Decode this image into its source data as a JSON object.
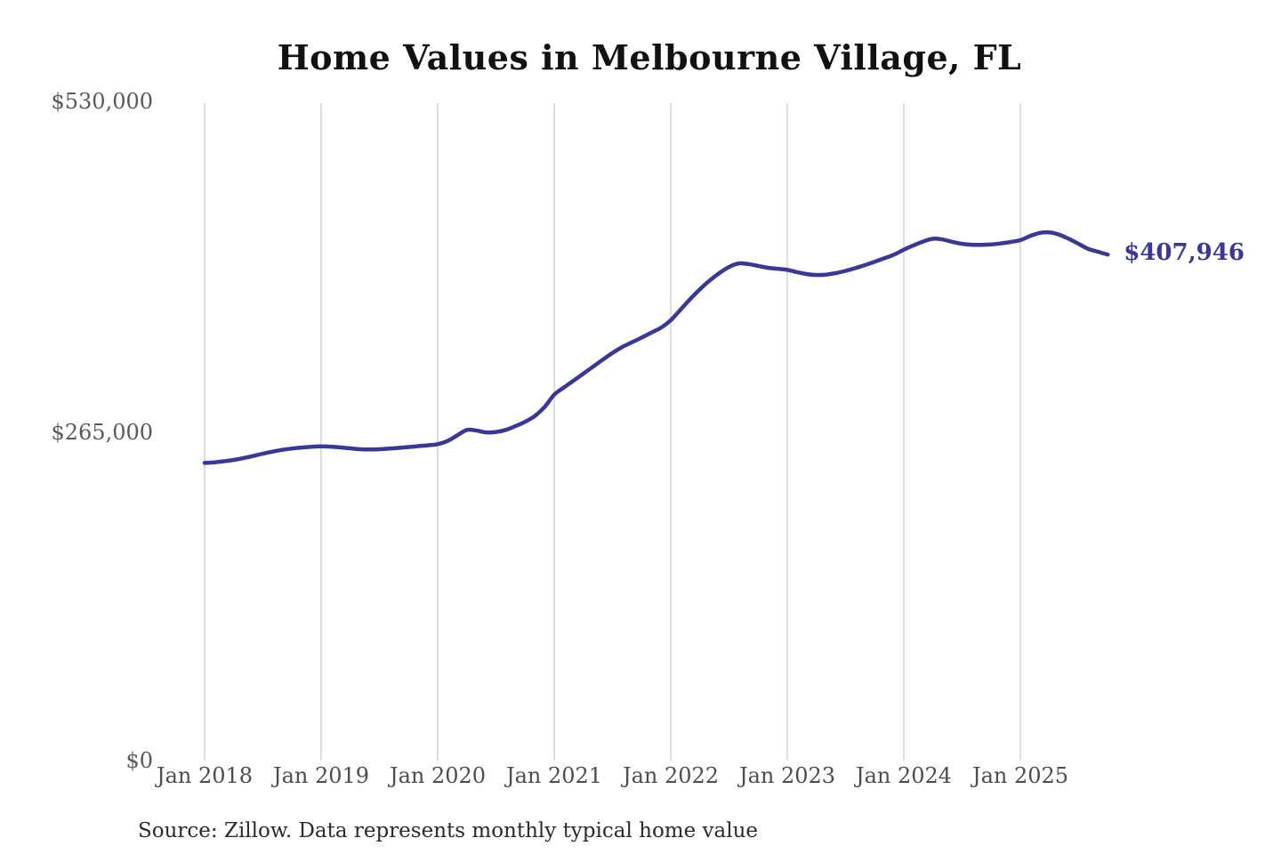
{
  "title": "Home Values in Melbourne Village, FL",
  "end_label": "$407,946",
  "source_note": "Source: Zillow. Data represents monthly typical home value",
  "y_axis": {
    "ticks": [
      "$530,000",
      "$265,000",
      "$0"
    ]
  },
  "x_axis": {
    "ticks": [
      "Jan 2018",
      "Jan 2019",
      "Jan 2020",
      "Jan 2021",
      "Jan 2022",
      "Jan 2023",
      "Jan 2024",
      "Jan 2025"
    ]
  },
  "colors": {
    "line": "#3a3896",
    "grid": "#cccccc",
    "tick_label": "#4d4d4d",
    "y_tick_label": "#5a5a5a",
    "title": "#111111",
    "source": "#2b2b2b"
  },
  "chart_data": {
    "type": "line",
    "title": "Home Values in Melbourne Village, FL",
    "xlabel": "",
    "ylabel": "",
    "ylim": [
      0,
      530000
    ],
    "grid": "vertical-yearly",
    "legend": "none",
    "end_value": 407946,
    "end_value_label": "$407,946",
    "x": [
      "2018-01",
      "2018-02",
      "2018-03",
      "2018-04",
      "2018-05",
      "2018-06",
      "2018-07",
      "2018-08",
      "2018-09",
      "2018-10",
      "2018-11",
      "2018-12",
      "2019-01",
      "2019-02",
      "2019-03",
      "2019-04",
      "2019-05",
      "2019-06",
      "2019-07",
      "2019-08",
      "2019-09",
      "2019-10",
      "2019-11",
      "2019-12",
      "2020-01",
      "2020-02",
      "2020-03",
      "2020-04",
      "2020-05",
      "2020-06",
      "2020-07",
      "2020-08",
      "2020-09",
      "2020-10",
      "2020-11",
      "2020-12",
      "2021-01",
      "2021-02",
      "2021-03",
      "2021-04",
      "2021-05",
      "2021-06",
      "2021-07",
      "2021-08",
      "2021-09",
      "2021-10",
      "2021-11",
      "2021-12",
      "2022-01",
      "2022-02",
      "2022-03",
      "2022-04",
      "2022-05",
      "2022-06",
      "2022-07",
      "2022-08",
      "2022-09",
      "2022-10",
      "2022-11",
      "2022-12",
      "2023-01",
      "2023-02",
      "2023-03",
      "2023-04",
      "2023-05",
      "2023-06",
      "2023-07",
      "2023-08",
      "2023-09",
      "2023-10",
      "2023-11",
      "2023-12",
      "2024-01",
      "2024-02",
      "2024-03",
      "2024-04",
      "2024-05",
      "2024-06",
      "2024-07",
      "2024-08",
      "2024-09",
      "2024-10",
      "2024-11",
      "2024-12",
      "2025-01",
      "2025-02",
      "2025-03",
      "2025-04",
      "2025-05",
      "2025-06",
      "2025-07",
      "2025-08",
      "2025-09",
      "2025-10"
    ],
    "values": [
      240000,
      240500,
      241300,
      242400,
      243900,
      245600,
      247400,
      249100,
      250500,
      251600,
      252400,
      253000,
      253300,
      253100,
      252500,
      251700,
      251000,
      250800,
      251000,
      251500,
      252100,
      252800,
      253500,
      254200,
      255100,
      257600,
      262100,
      266600,
      266100,
      264600,
      264900,
      266600,
      269600,
      273200,
      277800,
      285000,
      295000,
      300800,
      306400,
      312000,
      317600,
      323200,
      328600,
      333400,
      337200,
      341000,
      345000,
      349000,
      355000,
      363500,
      372000,
      380000,
      387000,
      393000,
      398000,
      400800,
      400300,
      398800,
      397300,
      396500,
      395600,
      393800,
      392200,
      391500,
      391800,
      393000,
      394800,
      397000,
      399500,
      402200,
      405000,
      407900,
      411900,
      415400,
      418500,
      420700,
      420100,
      418200,
      416600,
      415900,
      415800,
      416100,
      417000,
      418100,
      419600,
      422900,
      425400,
      425800,
      424000,
      420600,
      416600,
      412500,
      410200,
      407946
    ]
  }
}
